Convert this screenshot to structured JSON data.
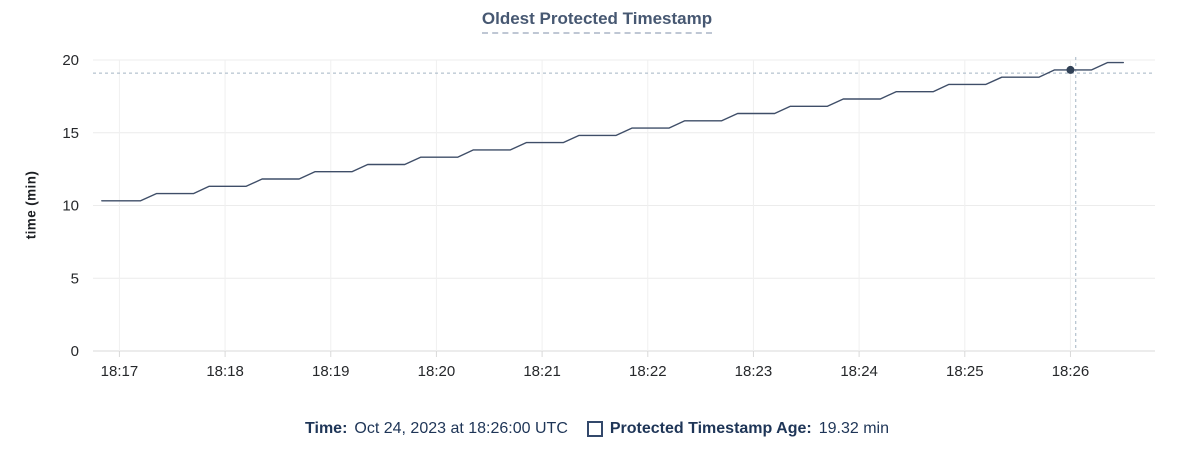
{
  "title": "Oldest Protected Timestamp",
  "y_axis_label": "time (min)",
  "colors": {
    "title": "#475872",
    "line": "#3f4e68",
    "dot": "#314156",
    "crosshair": "#a4b5c3",
    "grid_h": "#ececec",
    "grid_v": "#f0f0f0",
    "axis": "#d9d9d9",
    "tick_text": "#26282b",
    "legend_text": "#1e3557",
    "swatch_border": "#33486b"
  },
  "chart_data": {
    "type": "line",
    "title": "Oldest Protected Timestamp",
    "xlabel": "",
    "ylabel": "time (min)",
    "ylim": [
      0,
      20
    ],
    "y_ticks": [
      0,
      5,
      10,
      15,
      20
    ],
    "x_ticks": [
      "18:17",
      "18:18",
      "18:19",
      "18:20",
      "18:21",
      "18:22",
      "18:23",
      "18:24",
      "18:25",
      "18:26"
    ],
    "x_axis": {
      "start": "18:16:45",
      "end": "18:26:48"
    },
    "grid": true,
    "legend_position": "bottom",
    "series": [
      {
        "name": "Protected Timestamp Age",
        "unit": "min",
        "points": [
          [
            "18:16:50",
            10.32
          ],
          [
            "18:17:12",
            10.32
          ],
          [
            "18:17:21",
            10.82
          ],
          [
            "18:17:42",
            10.82
          ],
          [
            "18:17:51",
            11.32
          ],
          [
            "18:18:12",
            11.32
          ],
          [
            "18:18:21",
            11.82
          ],
          [
            "18:18:42",
            11.82
          ],
          [
            "18:18:51",
            12.32
          ],
          [
            "18:19:12",
            12.32
          ],
          [
            "18:19:21",
            12.82
          ],
          [
            "18:19:42",
            12.82
          ],
          [
            "18:19:51",
            13.32
          ],
          [
            "18:20:12",
            13.32
          ],
          [
            "18:20:21",
            13.82
          ],
          [
            "18:20:42",
            13.82
          ],
          [
            "18:20:51",
            14.32
          ],
          [
            "18:21:12",
            14.32
          ],
          [
            "18:21:21",
            14.82
          ],
          [
            "18:21:42",
            14.82
          ],
          [
            "18:21:51",
            15.32
          ],
          [
            "18:22:12",
            15.32
          ],
          [
            "18:22:21",
            15.82
          ],
          [
            "18:22:42",
            15.82
          ],
          [
            "18:22:51",
            16.32
          ],
          [
            "18:23:12",
            16.32
          ],
          [
            "18:23:21",
            16.82
          ],
          [
            "18:23:42",
            16.82
          ],
          [
            "18:23:51",
            17.32
          ],
          [
            "18:24:12",
            17.32
          ],
          [
            "18:24:21",
            17.82
          ],
          [
            "18:24:42",
            17.82
          ],
          [
            "18:24:51",
            18.32
          ],
          [
            "18:25:12",
            18.32
          ],
          [
            "18:25:21",
            18.82
          ],
          [
            "18:25:42",
            18.82
          ],
          [
            "18:25:51",
            19.32
          ],
          [
            "18:26:12",
            19.32
          ],
          [
            "18:26:21",
            19.82
          ],
          [
            "18:26:30",
            19.82
          ]
        ]
      }
    ],
    "hover": {
      "time": "18:26:00",
      "value": 19.32,
      "crosshair_time": "18:26:03",
      "crosshair_value": 19.1
    }
  },
  "legend": {
    "time_label": "Time:",
    "time_value": "Oct 24, 2023 at 18:26:00 UTC",
    "series_label": "Protected Timestamp Age:",
    "series_value": "19.32 min"
  }
}
